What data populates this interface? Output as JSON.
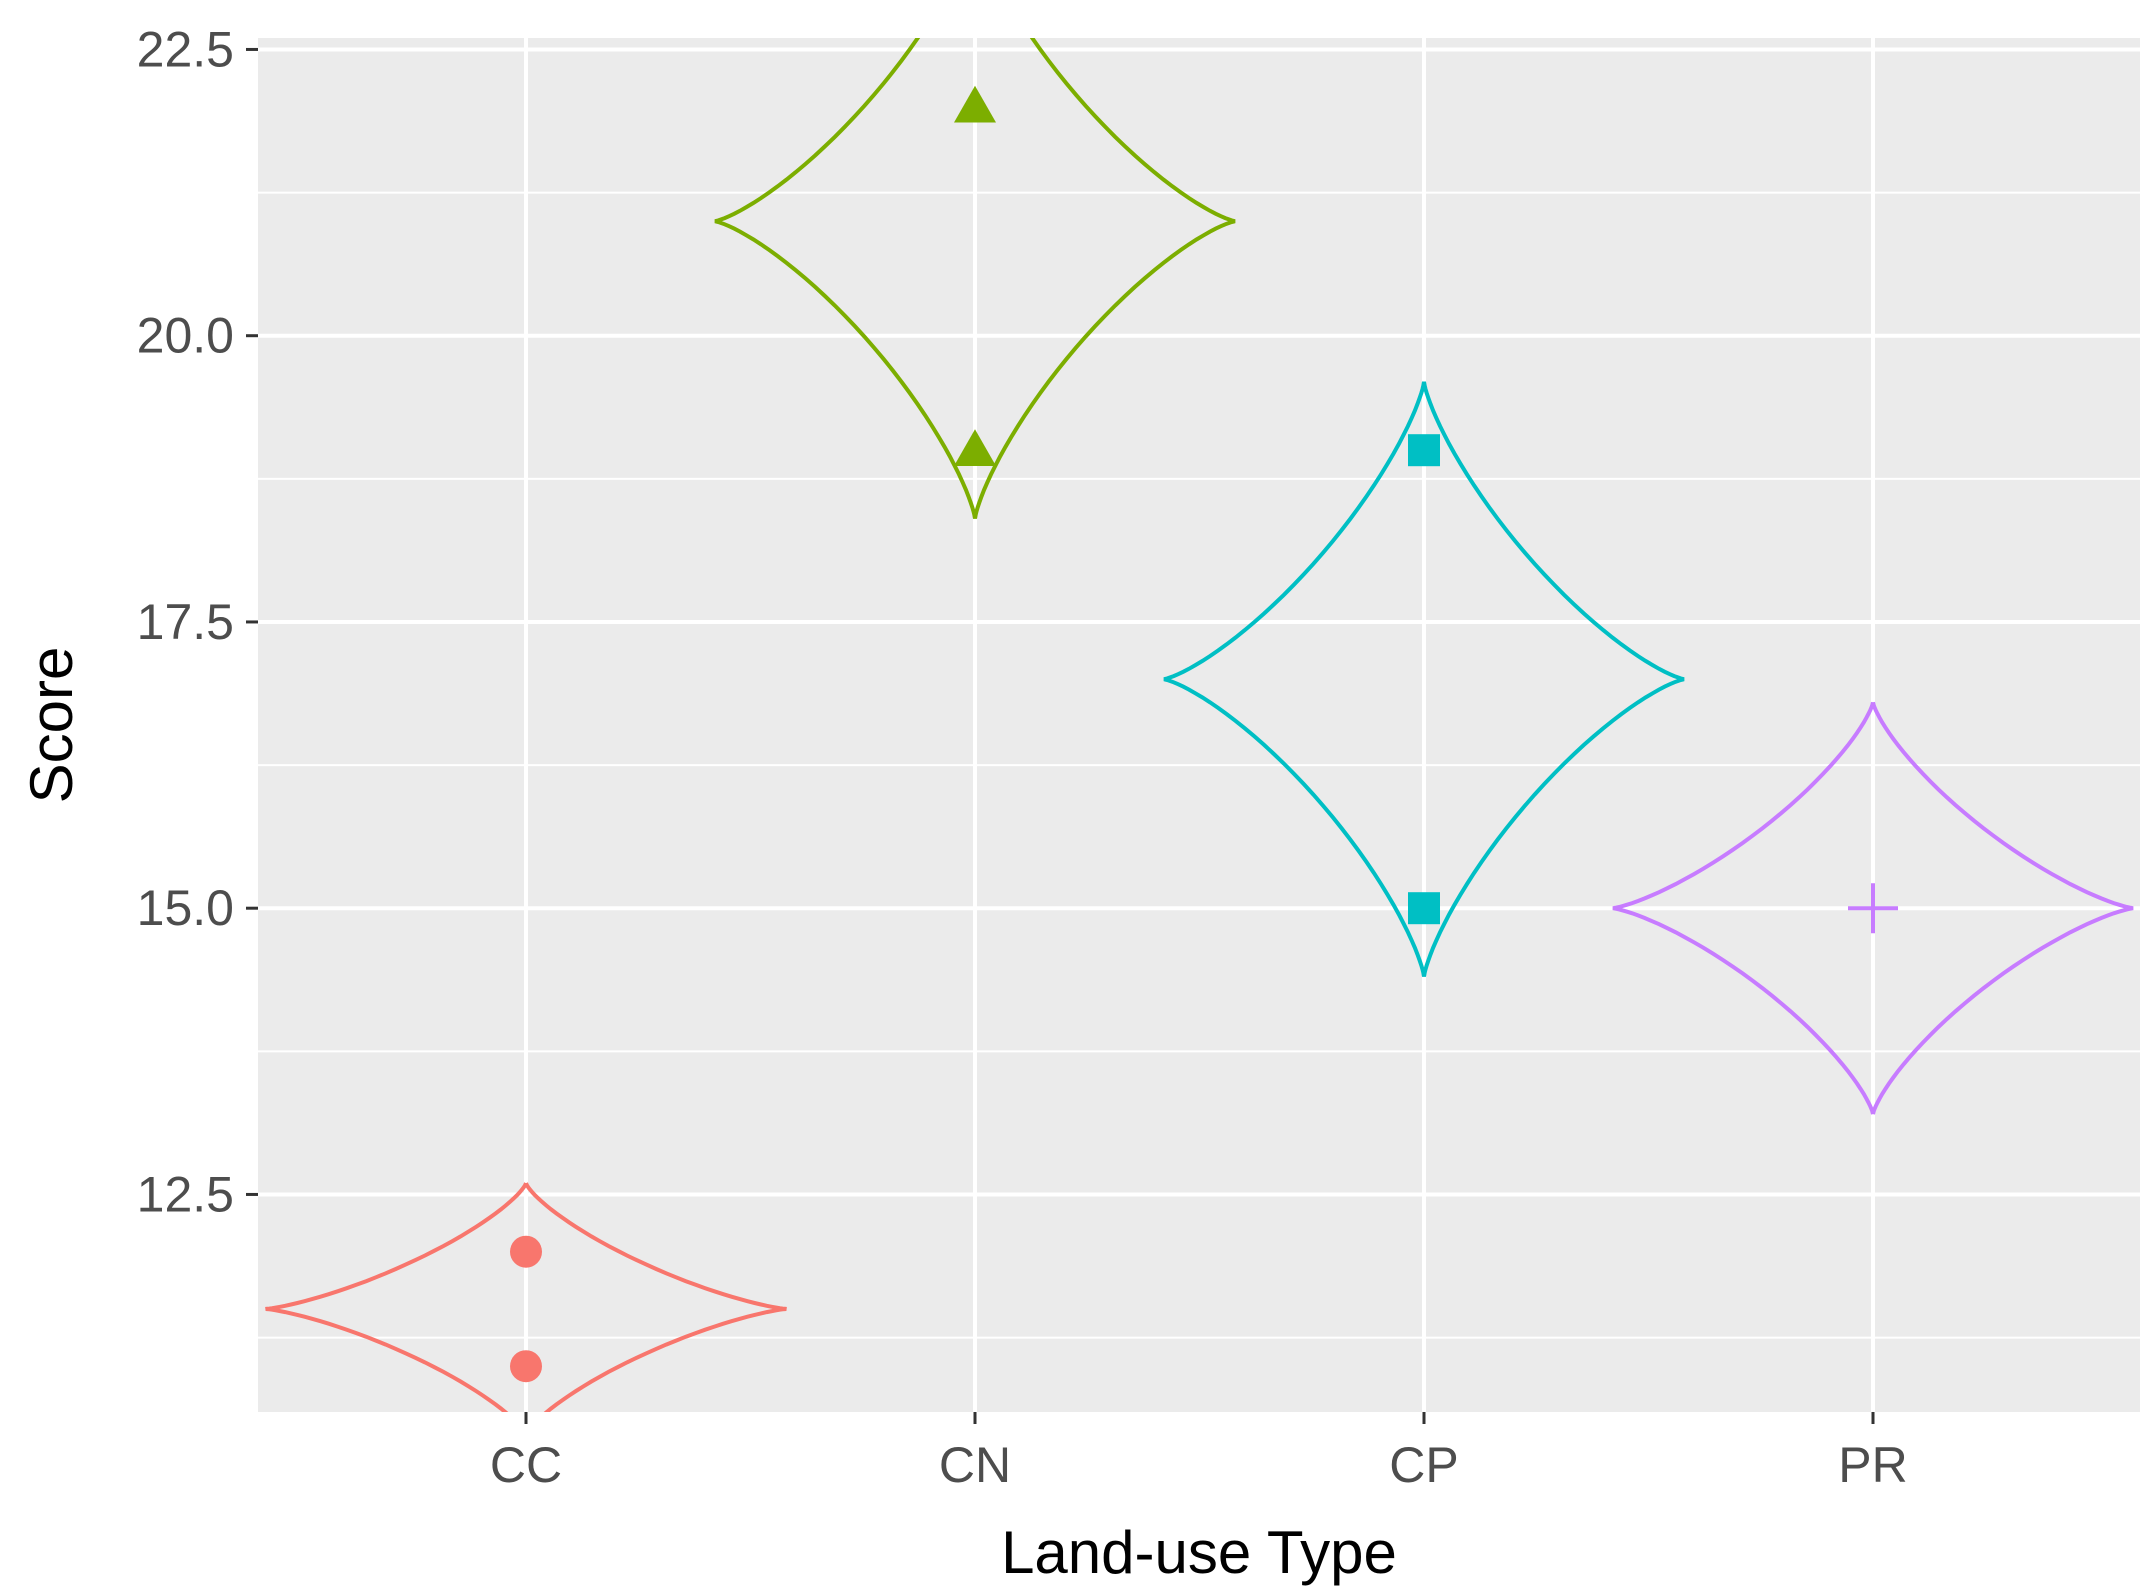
{
  "chart_data": {
    "type": "scatter",
    "xlabel": "Land-use Type",
    "ylabel": "Score",
    "categories": [
      "CC",
      "CN",
      "CP",
      "PR"
    ],
    "ylim": [
      10.6,
      22.6
    ],
    "y_ticks": [
      12.5,
      15.0,
      17.5,
      20.0,
      22.5
    ],
    "y_tick_labels": [
      "12.5",
      "15.0",
      "17.5",
      "20.0",
      "22.5"
    ],
    "grid": true,
    "legend": "none",
    "groups": [
      {
        "category": "CC",
        "color": "#F8766D",
        "shape": "circle",
        "values": [
          12.0,
          11.0
        ],
        "enclosure": {
          "center": 11.5,
          "half_height": 1.1,
          "half_width_cat": 0.58
        }
      },
      {
        "category": "CN",
        "color": "#7CAE00",
        "shape": "triangle",
        "values": [
          22.0,
          19.0
        ],
        "enclosure": {
          "center": 21.0,
          "half_height": 2.6,
          "half_width_cat": 0.58
        }
      },
      {
        "category": "CP",
        "color": "#00BFC4",
        "shape": "square",
        "values": [
          19.0,
          15.0
        ],
        "enclosure": {
          "center": 17.0,
          "half_height": 2.6,
          "half_width_cat": 0.58
        }
      },
      {
        "category": "PR",
        "color": "#C77CFF",
        "shape": "plus",
        "values": [
          15.0
        ],
        "enclosure": {
          "center": 15.0,
          "half_height": 1.8,
          "half_width_cat": 0.58
        }
      }
    ]
  }
}
